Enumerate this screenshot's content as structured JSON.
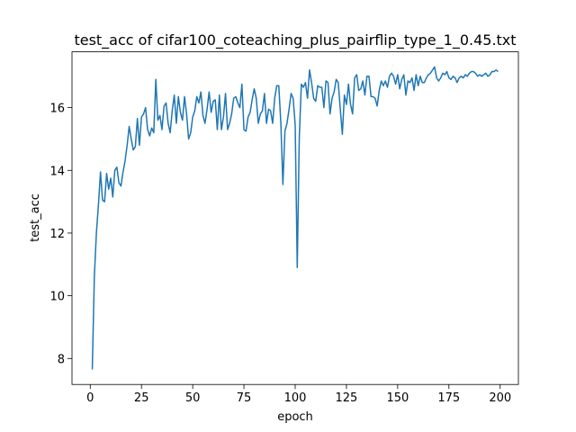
{
  "chart_data": {
    "type": "line",
    "title": "test_acc of cifar100_coteaching_plus_pairflip_type_1_0.45.txt",
    "xlabel": "epoch",
    "ylabel": "test_acc",
    "color": "#1f77b4",
    "x": [
      1,
      2,
      3,
      4,
      5,
      6,
      7,
      8,
      9,
      10,
      11,
      12,
      13,
      14,
      15,
      16,
      17,
      18,
      19,
      20,
      21,
      22,
      23,
      24,
      25,
      26,
      27,
      28,
      29,
      30,
      31,
      32,
      33,
      34,
      35,
      36,
      37,
      38,
      39,
      40,
      41,
      42,
      43,
      44,
      45,
      46,
      47,
      48,
      49,
      50,
      51,
      52,
      53,
      54,
      55,
      56,
      57,
      58,
      59,
      60,
      61,
      62,
      63,
      64,
      65,
      66,
      67,
      68,
      69,
      70,
      71,
      72,
      73,
      74,
      75,
      76,
      77,
      78,
      79,
      80,
      81,
      82,
      83,
      84,
      85,
      86,
      87,
      88,
      89,
      90,
      91,
      92,
      93,
      94,
      95,
      96,
      97,
      98,
      99,
      100,
      101,
      102,
      103,
      104,
      105,
      106,
      107,
      108,
      109,
      110,
      111,
      112,
      113,
      114,
      115,
      116,
      117,
      118,
      119,
      120,
      121,
      122,
      123,
      124,
      125,
      126,
      127,
      128,
      129,
      130,
      131,
      132,
      133,
      134,
      135,
      136,
      137,
      138,
      139,
      140,
      141,
      142,
      143,
      144,
      145,
      146,
      147,
      148,
      149,
      150,
      151,
      152,
      153,
      154,
      155,
      156,
      157,
      158,
      159,
      160,
      161,
      162,
      163,
      164,
      165,
      166,
      167,
      168,
      169,
      170,
      171,
      172,
      173,
      174,
      175,
      176,
      177,
      178,
      179,
      180,
      181,
      182,
      183,
      184,
      185,
      186,
      187,
      188,
      189,
      190,
      191,
      192,
      193,
      194,
      195,
      196,
      197,
      198,
      199
    ],
    "values": [
      7.65,
      10.6,
      12.0,
      12.9,
      13.95,
      13.05,
      13.0,
      13.9,
      13.4,
      13.75,
      13.15,
      14.0,
      14.1,
      13.6,
      13.5,
      13.95,
      14.3,
      14.8,
      15.4,
      15.0,
      14.65,
      14.75,
      15.65,
      14.8,
      15.7,
      15.8,
      16.0,
      15.3,
      15.1,
      15.35,
      15.2,
      16.9,
      15.6,
      15.75,
      15.3,
      16.05,
      16.15,
      15.5,
      15.2,
      15.9,
      16.4,
      15.5,
      16.35,
      15.85,
      15.6,
      16.35,
      15.8,
      15.0,
      15.2,
      15.7,
      15.9,
      16.35,
      16.15,
      16.5,
      15.75,
      15.5,
      15.95,
      16.5,
      15.85,
      16.2,
      16.25,
      15.3,
      16.4,
      15.3,
      15.7,
      16.45,
      15.3,
      15.5,
      15.8,
      16.3,
      16.35,
      16.15,
      16.0,
      16.75,
      15.3,
      15.25,
      15.7,
      15.85,
      16.25,
      16.6,
      16.3,
      15.5,
      15.8,
      15.9,
      16.45,
      15.5,
      15.95,
      15.9,
      15.5,
      16.3,
      16.7,
      16.7,
      15.5,
      13.55,
      15.25,
      15.5,
      15.95,
      16.45,
      16.3,
      15.45,
      10.9,
      15.05,
      16.75,
      16.65,
      16.8,
      16.3,
      17.2,
      16.8,
      16.3,
      16.2,
      16.7,
      16.65,
      16.65,
      16.0,
      16.85,
      16.8,
      15.8,
      16.3,
      16.5,
      16.9,
      16.8,
      15.95,
      15.15,
      16.4,
      16.1,
      16.75,
      16.1,
      15.8,
      16.95,
      17.05,
      16.55,
      16.6,
      16.85,
      16.4,
      17.0,
      17.0,
      16.35,
      16.35,
      16.3,
      16.05,
      16.55,
      16.85,
      16.7,
      16.85,
      16.65,
      17.0,
      17.1,
      17.0,
      16.75,
      17.05,
      16.6,
      16.9,
      17.05,
      16.4,
      16.85,
      16.8,
      16.95,
      16.55,
      17.05,
      16.7,
      17.0,
      16.8,
      16.8,
      16.95,
      17.05,
      17.1,
      17.2,
      17.3,
      16.95,
      16.85,
      16.95,
      17.1,
      17.05,
      17.15,
      16.95,
      16.9,
      17.0,
      16.95,
      16.8,
      16.95,
      17.0,
      16.95,
      17.05,
      17.0,
      17.1,
      17.15,
      17.15,
      17.1,
      17.0,
      17.05,
      17.0,
      17.05,
      17.1,
      17.0,
      17.05,
      17.15,
      17.15,
      17.2,
      17.15
    ],
    "xlim": [
      -8.9,
      208.9
    ],
    "xticks": [
      0,
      25,
      50,
      75,
      100,
      125,
      150,
      175,
      200
    ],
    "ylim": [
      7.17,
      17.78
    ],
    "yticks": [
      8,
      10,
      12,
      14,
      16
    ]
  }
}
